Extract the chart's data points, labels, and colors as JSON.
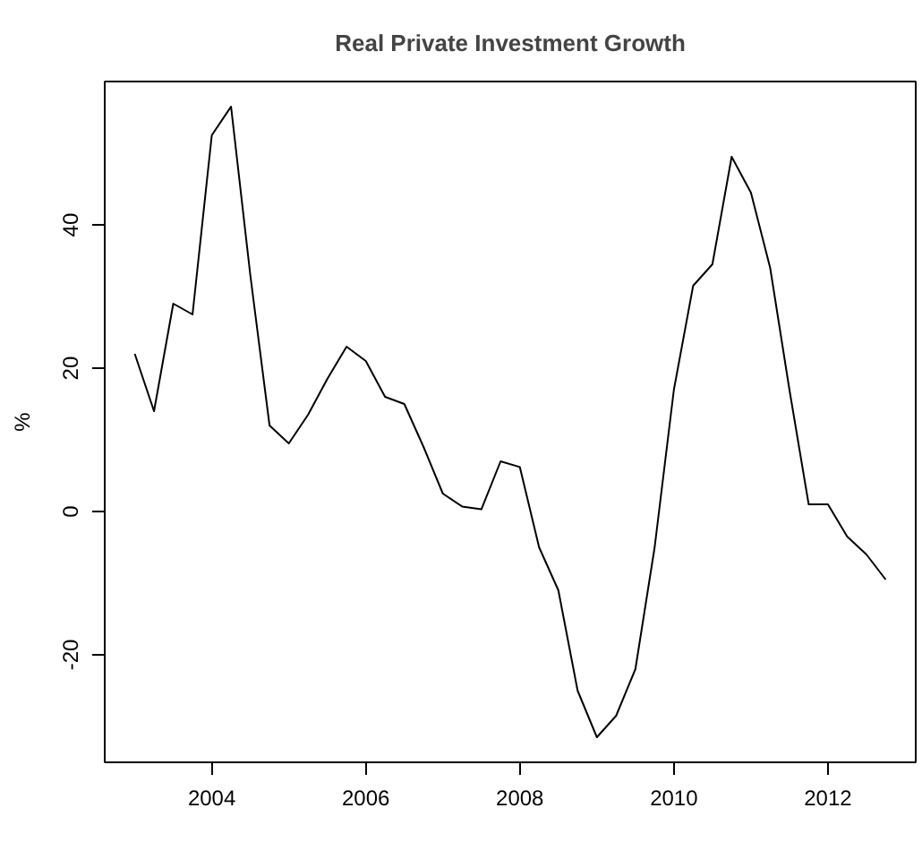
{
  "chart_data": {
    "type": "line",
    "title": "Real Private Investment Growth",
    "ylabel": "%",
    "x": [
      2003.0,
      2003.25,
      2003.5,
      2003.75,
      2004.0,
      2004.25,
      2004.5,
      2004.75,
      2005.0,
      2005.25,
      2005.5,
      2005.75,
      2006.0,
      2006.25,
      2006.5,
      2006.75,
      2007.0,
      2007.25,
      2007.5,
      2007.75,
      2008.0,
      2008.25,
      2008.5,
      2008.75,
      2009.0,
      2009.25,
      2009.5,
      2009.75,
      2010.0,
      2010.25,
      2010.5,
      2010.75,
      2011.0,
      2011.25,
      2011.5,
      2011.75,
      2012.0,
      2012.25,
      2012.5,
      2012.75
    ],
    "series": [
      {
        "color": "#000000",
        "values": [
          22,
          14,
          29,
          27.5,
          52.5,
          56.5,
          33,
          12,
          9.5,
          13.5,
          18.5,
          23,
          21,
          16,
          15,
          9,
          2.5,
          0.7,
          0.3,
          7,
          6.2,
          -5,
          -11,
          -25,
          -31.5,
          -28.5,
          -22,
          -5,
          17,
          31.5,
          34.5,
          49.5,
          44.5,
          34,
          17,
          1,
          1,
          -3.5,
          -6,
          -9.5
        ]
      }
    ],
    "xlim": [
      2002.61,
      2013.14
    ],
    "ylim": [
      -35,
      60
    ],
    "xticks": [
      2004,
      2006,
      2008,
      2010,
      2012
    ],
    "yticks": [
      -20,
      0,
      20,
      40
    ],
    "grid": false,
    "marker": "none",
    "line_style": "solid"
  }
}
